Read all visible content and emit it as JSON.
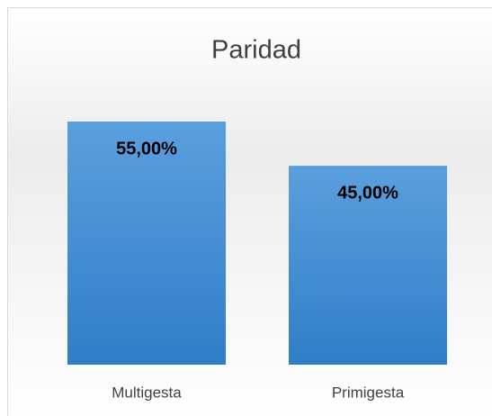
{
  "chart_data": {
    "type": "bar",
    "title": "Paridad",
    "categories": [
      "Multigesta",
      "Primigesta"
    ],
    "values": [
      55,
      45
    ],
    "value_labels": [
      "55,00%",
      "45,00%"
    ],
    "color": "#4a8fd6"
  }
}
